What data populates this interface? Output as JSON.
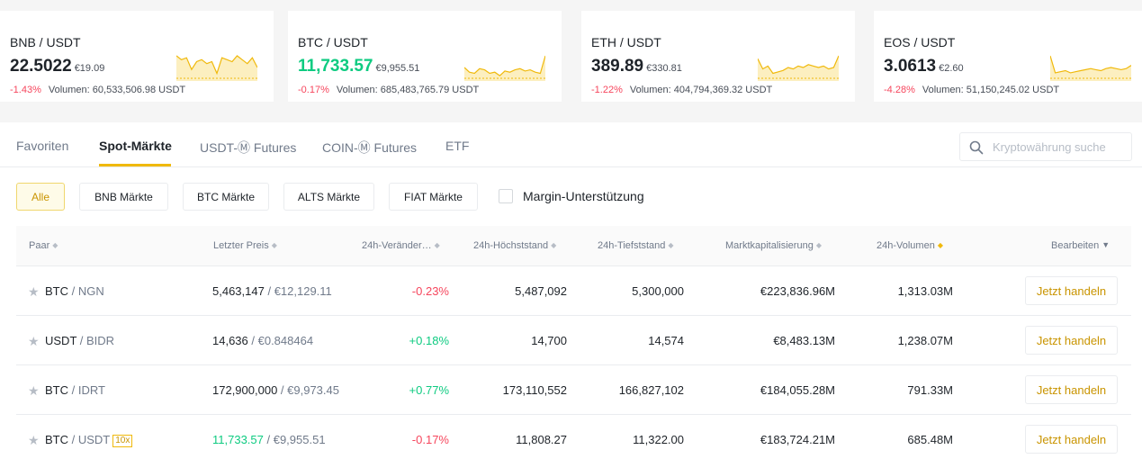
{
  "tickers": [
    {
      "pair": "BNB / USDT",
      "price": "22.5022",
      "eur": "€19.09",
      "change": "-1.43%",
      "volume": "Volumen: 60,533,506.98 USDT",
      "price_up": false,
      "spark": [
        12,
        10,
        11,
        5,
        9,
        10,
        8,
        9,
        3,
        11,
        10,
        9,
        12,
        10,
        8,
        11,
        6
      ]
    },
    {
      "pair": "BTC / USDT",
      "price": "11,733.57",
      "eur": "€9,955.51",
      "change": "-0.17%",
      "volume": "Volumen: 685,483,765.79 USDT",
      "price_up": true,
      "spark": [
        10,
        6,
        5,
        9,
        8,
        5,
        6,
        3,
        7,
        6,
        8,
        9,
        7,
        8,
        6,
        5,
        20
      ]
    },
    {
      "pair": "ETH / USDT",
      "price": "389.89",
      "eur": "€330.81",
      "change": "-1.22%",
      "volume": "Volumen: 404,794,369.32 USDT",
      "price_up": false,
      "spark": [
        14,
        7,
        9,
        4,
        5,
        6,
        8,
        7,
        9,
        8,
        10,
        9,
        8,
        9,
        7,
        8,
        16
      ]
    },
    {
      "pair": "EOS / USDT",
      "price": "3.0613",
      "eur": "€2.60",
      "change": "-4.28%",
      "volume": "Volumen: 51,150,245.02 USDT",
      "price_up": false,
      "spark": [
        22,
        6,
        7,
        8,
        6,
        7,
        8,
        9,
        10,
        9,
        8,
        10,
        11,
        10,
        9,
        10,
        13
      ]
    }
  ],
  "tabs": [
    "Favoriten",
    "Spot-Märkte",
    "USDT-Ⓜ Futures",
    "COIN-Ⓜ Futures",
    "ETF"
  ],
  "search": {
    "placeholder": "Kryptowährung suche"
  },
  "filters": [
    "Alle",
    "BNB Märkte",
    "BTC Märkte",
    "ALTS Märkte",
    "FIAT Märkte"
  ],
  "margin_label": "Margin-Unterstützung",
  "columns": {
    "pair": "Paar",
    "last_price": "Letzter Preis",
    "change": "24h-Veränder…",
    "high": "24h-Höchststand",
    "low": "24h-Tiefststand",
    "market_cap": "Marktkapitalisierung",
    "volume": "24h-Volumen",
    "edit": "Bearbeiten"
  },
  "rows": [
    {
      "base": "BTC",
      "quote": "/ NGN",
      "leverage": "",
      "price": "5,463,147",
      "eur": "/ €12,129.11",
      "change": "-0.23%",
      "high": "5,487,092",
      "low": "5,300,000",
      "cap": "€223,836.96M",
      "vol": "1,313.03M"
    },
    {
      "base": "USDT",
      "quote": "/ BIDR",
      "leverage": "",
      "price": "14,636",
      "eur": "/ €0.848464",
      "change": "+0.18%",
      "high": "14,700",
      "low": "14,574",
      "cap": "€8,483.13M",
      "vol": "1,238.07M"
    },
    {
      "base": "BTC",
      "quote": "/ IDRT",
      "leverage": "",
      "price": "172,900,000",
      "eur": "/ €9,973.45",
      "change": "+0.77%",
      "high": "173,110,552",
      "low": "166,827,102",
      "cap": "€184,055.28M",
      "vol": "791.33M"
    },
    {
      "base": "BTC",
      "quote": "/ USDT",
      "leverage": "10x",
      "price": "11,733.57",
      "eur": "/ €9,955.51",
      "change": "-0.17%",
      "high": "11,808.27",
      "low": "11,322.00",
      "cap": "€183,724.21M",
      "vol": "685.48M"
    }
  ],
  "trade_label": "Jetzt handeln",
  "colors": {
    "accent": "#f0b90b",
    "up": "#0ecb81",
    "down": "#f6465d"
  }
}
